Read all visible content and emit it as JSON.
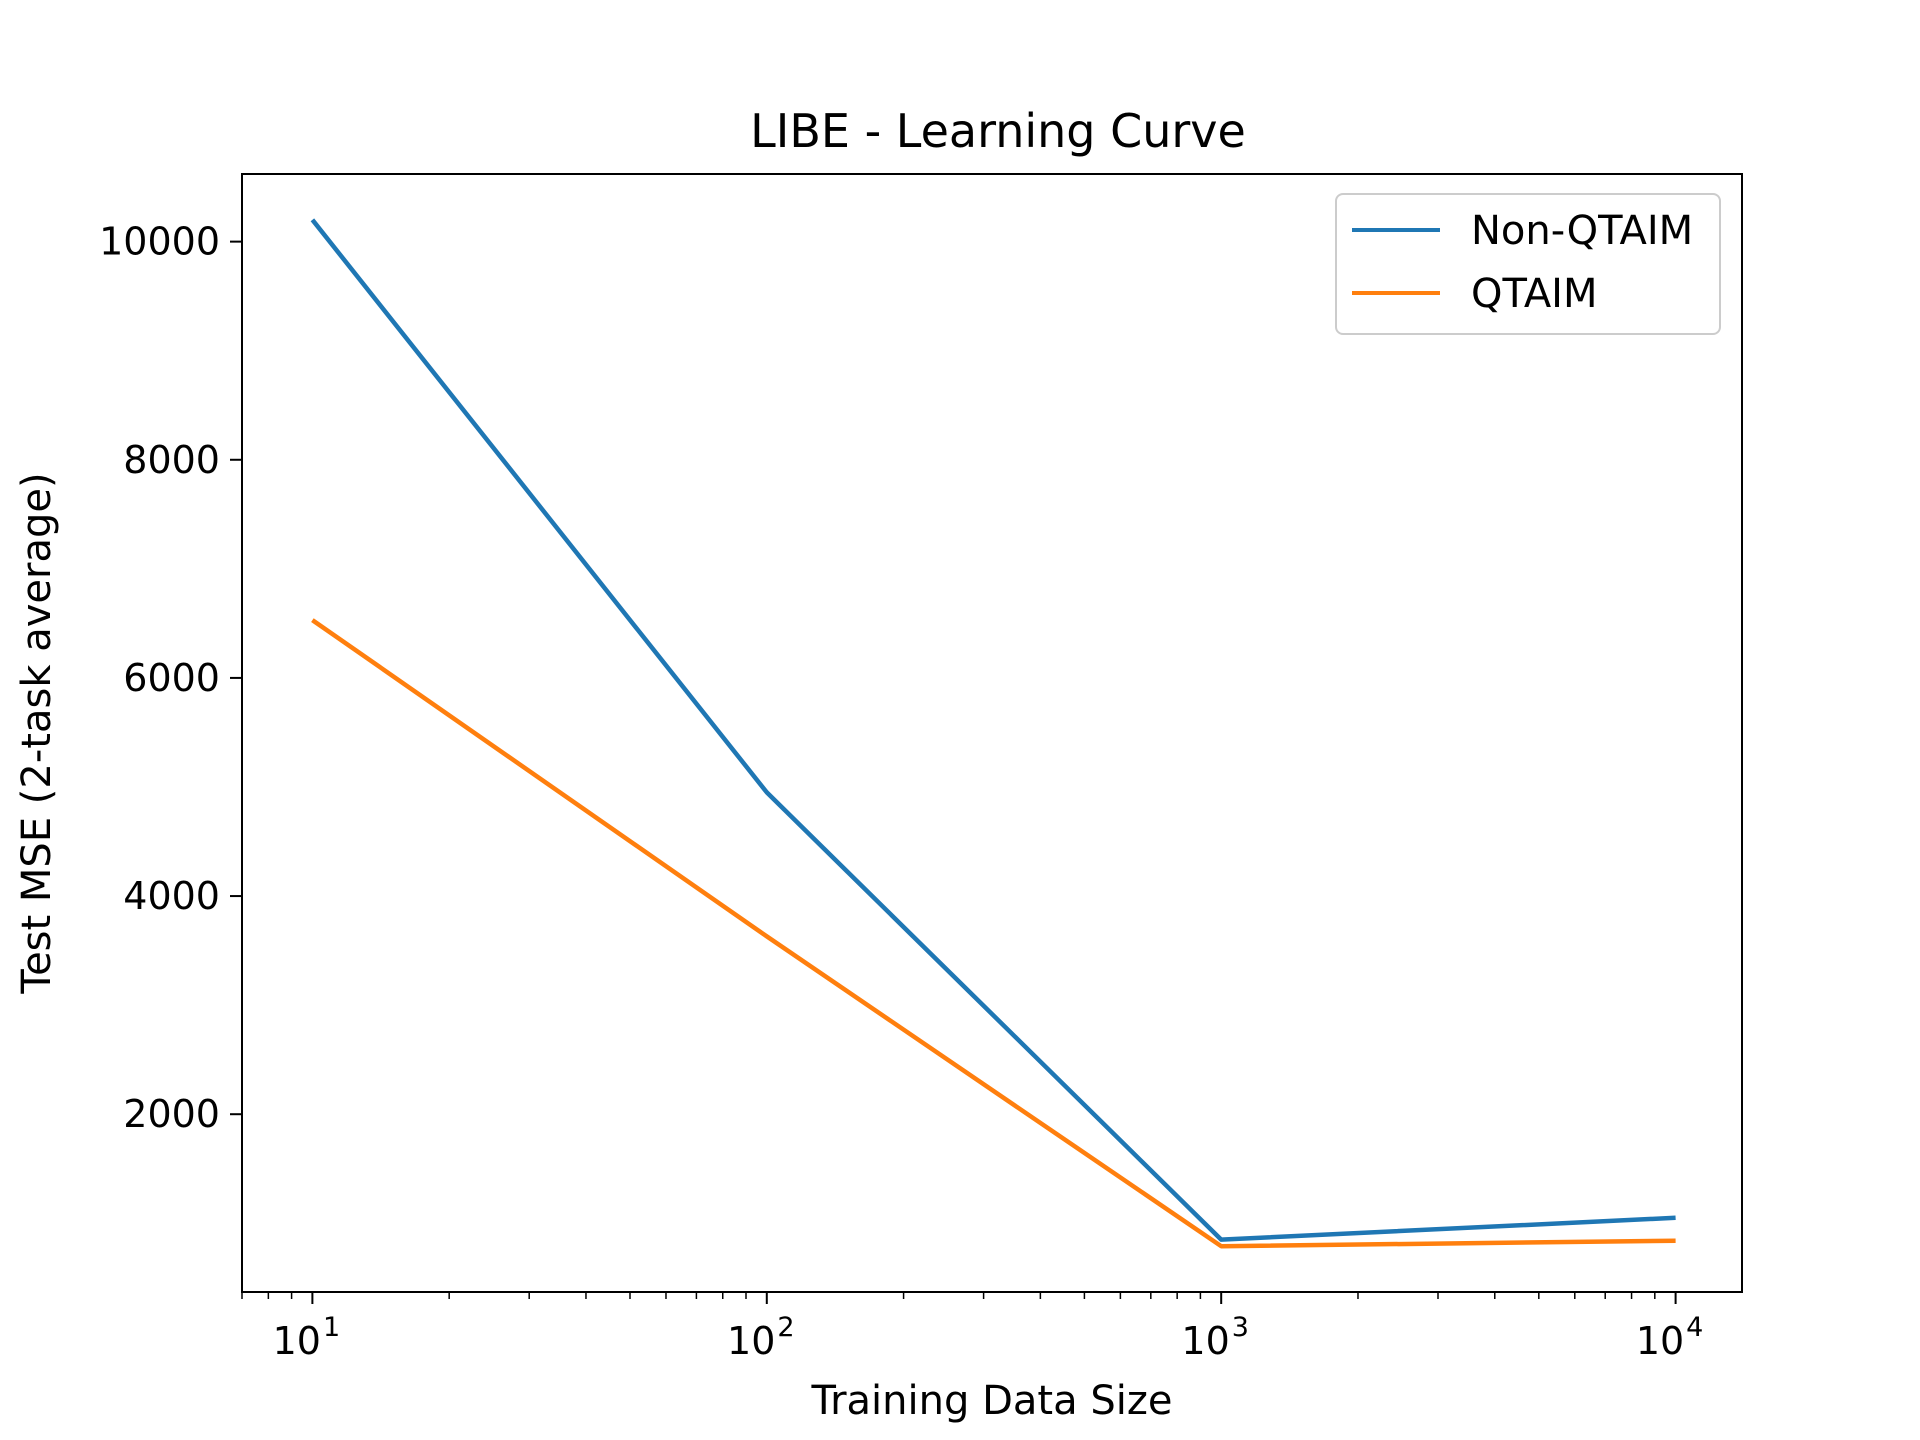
{
  "chart_data": {
    "type": "line",
    "title": "LIBE - Learning Curve",
    "xlabel": "Training Data Size",
    "ylabel": "Test MSE (2-task average)",
    "x_scale": "log",
    "xlim": [
      7,
      14000
    ],
    "ylim": [
      370,
      10620
    ],
    "x_ticks": [
      {
        "value": 10,
        "base": "10",
        "exp": "1"
      },
      {
        "value": 100,
        "base": "10",
        "exp": "2"
      },
      {
        "value": 1000,
        "base": "10",
        "exp": "3"
      },
      {
        "value": 10000,
        "base": "10",
        "exp": "4"
      }
    ],
    "y_ticks": [
      {
        "value": 2000,
        "label": "2000"
      },
      {
        "value": 4000,
        "label": "4000"
      },
      {
        "value": 6000,
        "label": "6000"
      },
      {
        "value": 8000,
        "label": "8000"
      },
      {
        "value": 10000,
        "label": "10000"
      }
    ],
    "grid": false,
    "legend_position": "top-right",
    "x": [
      10,
      100,
      1000,
      10000
    ],
    "series": [
      {
        "name": "Non-QTAIM",
        "color": "#1f77b4",
        "values": [
          10200,
          4950,
          850,
          1050
        ]
      },
      {
        "name": "QTAIM",
        "color": "#ff7f0e",
        "values": [
          6530,
          3630,
          790,
          840
        ]
      }
    ]
  }
}
